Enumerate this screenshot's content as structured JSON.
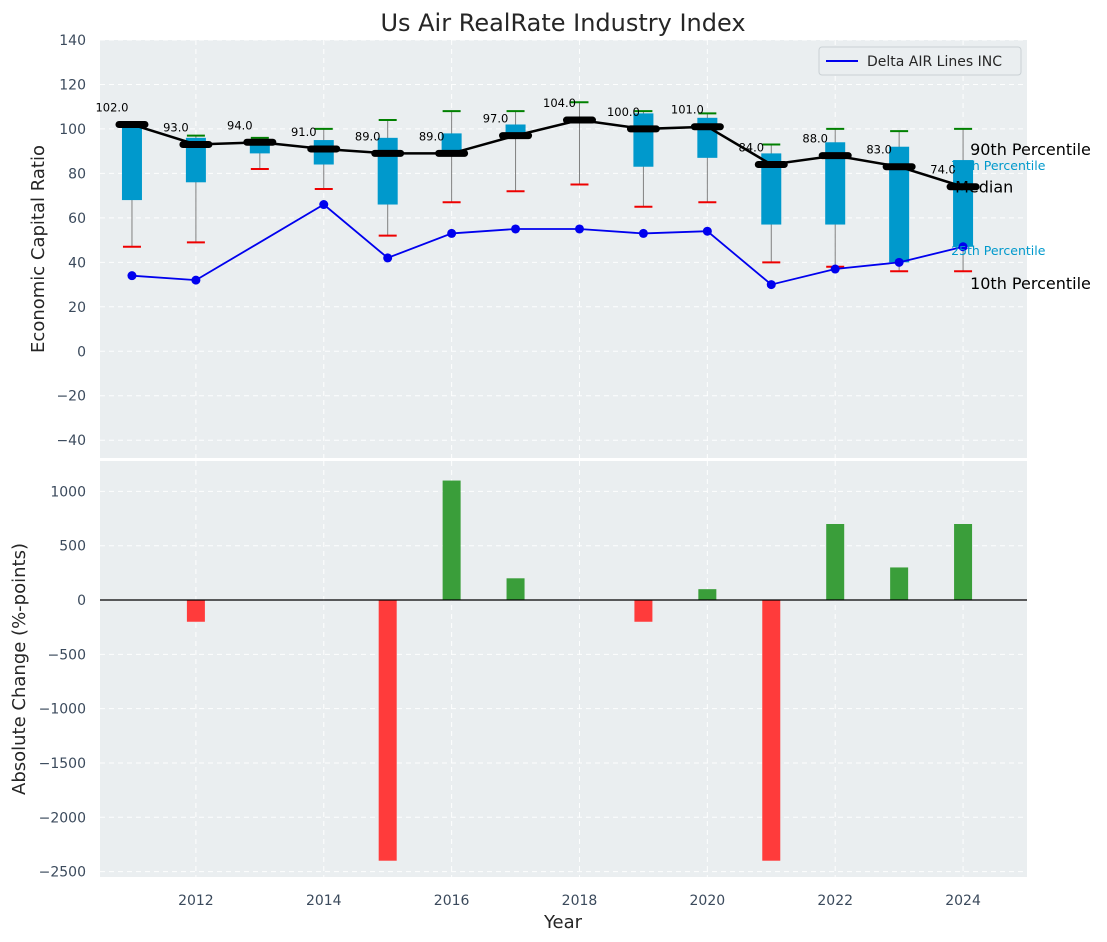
{
  "chart_data": [
    {
      "type": "box",
      "title": "Us Air RealRate Industry Index",
      "ylabel": "Economic Capital Ratio",
      "xlabel": "",
      "xlim": [
        2010.5,
        2025
      ],
      "ylim": [
        -48,
        140
      ],
      "yticks": [
        -40,
        -20,
        0,
        20,
        40,
        60,
        80,
        100,
        120,
        140
      ],
      "years": [
        2011,
        2012,
        2013,
        2014,
        2015,
        2016,
        2017,
        2018,
        2019,
        2020,
        2021,
        2022,
        2023,
        2024
      ],
      "industry": [
        {
          "year": 2011,
          "p10": 47,
          "q1": 68,
          "median": 102,
          "q3": 102,
          "p90": 102
        },
        {
          "year": 2012,
          "p10": 49,
          "q1": 76,
          "median": 93,
          "q3": 96,
          "p90": 97
        },
        {
          "year": 2013,
          "p10": 82,
          "q1": 89,
          "median": 94,
          "q3": 95,
          "p90": 96
        },
        {
          "year": 2014,
          "p10": 73,
          "q1": 84,
          "median": 91,
          "q3": 95,
          "p90": 100
        },
        {
          "year": 2015,
          "p10": 52,
          "q1": 66,
          "median": 89,
          "q3": 96,
          "p90": 104
        },
        {
          "year": 2016,
          "p10": 67,
          "q1": 89,
          "median": 89,
          "q3": 98,
          "p90": 108
        },
        {
          "year": 2017,
          "p10": 72,
          "q1": 97,
          "median": 97,
          "q3": 102,
          "p90": 108
        },
        {
          "year": 2018,
          "p10": 75,
          "q1": 104,
          "median": 104,
          "q3": 104,
          "p90": 112
        },
        {
          "year": 2019,
          "p10": 65,
          "q1": 83,
          "median": 100,
          "q3": 107,
          "p90": 108
        },
        {
          "year": 2020,
          "p10": 67,
          "q1": 87,
          "median": 101,
          "q3": 105,
          "p90": 107
        },
        {
          "year": 2021,
          "p10": 40,
          "q1": 57,
          "median": 84,
          "q3": 89,
          "p90": 93
        },
        {
          "year": 2022,
          "p10": 38,
          "q1": 57,
          "median": 88,
          "q3": 94,
          "p90": 100
        },
        {
          "year": 2023,
          "p10": 36,
          "q1": 40,
          "median": 83,
          "q3": 92,
          "p90": 99
        },
        {
          "year": 2024,
          "p10": 36,
          "q1": 47,
          "median": 74,
          "q3": 86,
          "p90": 100
        }
      ],
      "median_labels": [
        "102.0",
        "93.0",
        "94.0",
        "91.0",
        "89.0",
        "89.0",
        "97.0",
        "104.0",
        "100.0",
        "101.0",
        "84.0",
        "88.0",
        "83.0",
        "74.0"
      ],
      "company": {
        "name": "Delta AIR Lines INC",
        "color": "#0000ee",
        "values": [
          34,
          32,
          null,
          66,
          42,
          53,
          55,
          55,
          53,
          54,
          30,
          37,
          40,
          47
        ]
      },
      "annotations": {
        "p90": "90th Percentile",
        "p75": "75th Percentile",
        "median": "Median",
        "p25": "25th Percentile",
        "p10": "10th Percentile"
      },
      "colors": {
        "box": "#0099cc",
        "median": "#000000",
        "p90_cap": "#008000",
        "p10_cap": "#ee0000",
        "whisker": "#808080"
      }
    },
    {
      "type": "bar",
      "ylabel": "Absolute Change (%-points)",
      "xlabel": "Year",
      "xlim": [
        2010.5,
        2025
      ],
      "ylim": [
        -2550,
        1280
      ],
      "yticks": [
        -2500,
        -2000,
        -1500,
        -1000,
        -500,
        0,
        500,
        1000
      ],
      "xticks": [
        2012,
        2014,
        2016,
        2018,
        2020,
        2022,
        2024
      ],
      "years": [
        2012,
        2013,
        2014,
        2015,
        2016,
        2017,
        2018,
        2019,
        2020,
        2021,
        2022,
        2023,
        2024
      ],
      "values": [
        -200,
        0,
        0,
        -2400,
        1100,
        200,
        0,
        -200,
        100,
        -2400,
        700,
        300,
        700
      ],
      "colors": {
        "positive": "#3a9e3a",
        "negative": "#ff3b3b"
      }
    }
  ]
}
